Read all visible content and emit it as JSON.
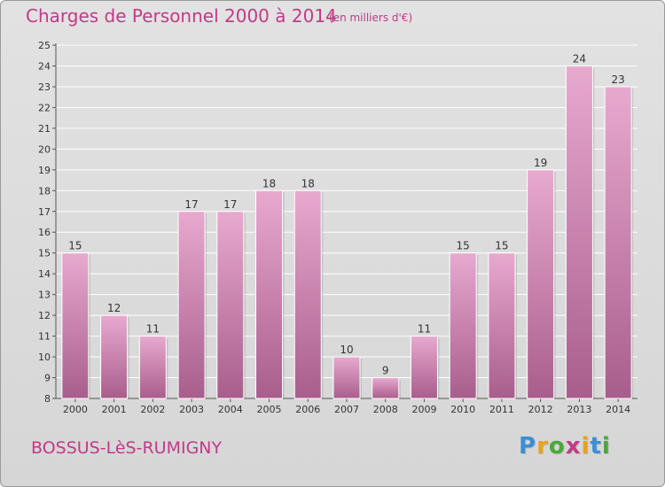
{
  "header": {
    "title": "Charges de Personnel 2000 à 2014",
    "subtitle": "(en milliers d'€)"
  },
  "footer": {
    "town": "BOSSUS-LèS-RUMIGNY",
    "brand_letters": [
      "P",
      "r",
      "o",
      "x",
      "i",
      "t",
      "i"
    ],
    "brand_colors": [
      "#3a8fd6",
      "#e8a21a",
      "#4aa83a",
      "#c23a87",
      "#e8a21a",
      "#3a8fd6",
      "#4aa83a"
    ]
  },
  "colors": {
    "bar_top": "#e8a9cf",
    "bar_bottom": "#a85e8c",
    "title": "#c23a87"
  },
  "chart_data": {
    "type": "bar",
    "title": "Charges de Personnel 2000 à 2014",
    "subtitle": "(en milliers d'€)",
    "categories": [
      "2000",
      "2001",
      "2002",
      "2003",
      "2004",
      "2005",
      "2006",
      "2007",
      "2008",
      "2009",
      "2010",
      "2011",
      "2012",
      "2013",
      "2014"
    ],
    "values": [
      15,
      12,
      11,
      17,
      17,
      18,
      18,
      10,
      9,
      11,
      15,
      15,
      19,
      24,
      23
    ],
    "ylim": [
      8,
      25
    ],
    "yticks": [
      8,
      9,
      10,
      11,
      12,
      13,
      14,
      15,
      16,
      17,
      18,
      19,
      20,
      21,
      22,
      23,
      24,
      25
    ],
    "grid": true,
    "xlabel": "",
    "ylabel": ""
  }
}
